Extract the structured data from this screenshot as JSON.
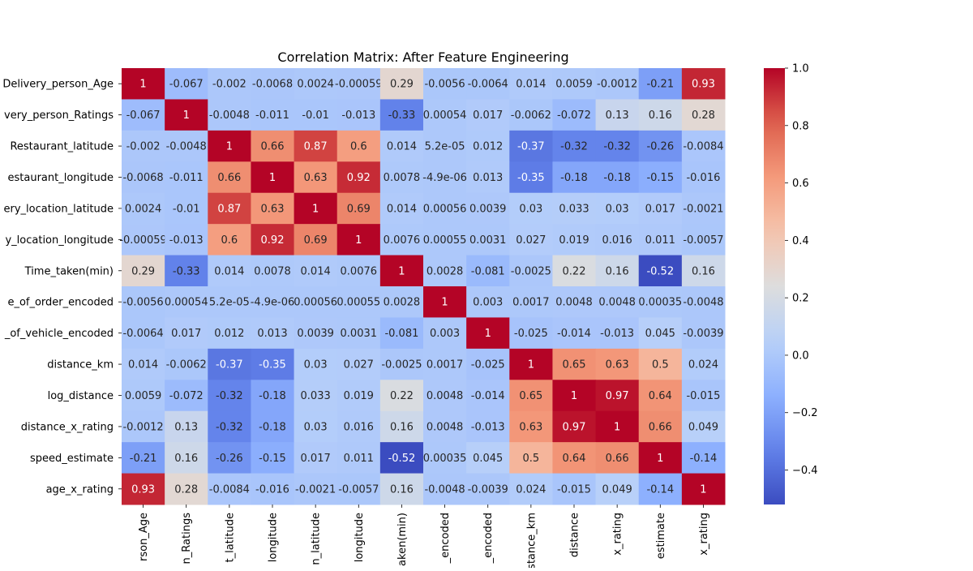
{
  "chart_data": {
    "type": "heatmap",
    "title": "Correlation Matrix: After Feature Engineering",
    "colormap": "coolwarm",
    "vmin": -0.52,
    "vmax": 1.0,
    "y_tick_labels": [
      "Delivery_person_Age",
      "very_person_Ratings",
      "Restaurant_latitude",
      "estaurant_longitude",
      "ery_location_latitude",
      "y_location_longitude",
      "Time_taken(min)",
      "e_of_order_encoded",
      "_of_vehicle_encoded",
      "distance_km",
      "log_distance",
      "distance_x_rating",
      "speed_estimate",
      "age_x_rating"
    ],
    "x_tick_labels": [
      "rson_Age",
      "n_Ratings",
      "t_latitude",
      "longitude",
      "n_latitude",
      "longitude",
      "aken(min)",
      "_encoded",
      "_encoded",
      "stance_km",
      "distance",
      "x_rating",
      "estimate",
      "x_rating"
    ],
    "values": [
      [
        1,
        -0.067,
        -0.002,
        -0.0068,
        0.0024,
        -0.00059,
        0.29,
        -0.0056,
        -0.0064,
        0.014,
        0.0059,
        -0.0012,
        -0.21,
        0.93
      ],
      [
        -0.067,
        1,
        -0.0048,
        -0.011,
        -0.01,
        -0.013,
        -0.33,
        0.00054,
        0.017,
        -0.0062,
        -0.072,
        0.13,
        0.16,
        0.28
      ],
      [
        -0.002,
        -0.0048,
        1,
        0.66,
        0.87,
        0.6,
        0.014,
        5.2e-05,
        0.012,
        -0.37,
        -0.32,
        -0.32,
        -0.26,
        -0.0084
      ],
      [
        -0.0068,
        -0.011,
        0.66,
        1,
        0.63,
        0.92,
        0.0078,
        -4.9e-06,
        0.013,
        -0.35,
        -0.18,
        -0.18,
        -0.15,
        -0.016
      ],
      [
        0.0024,
        -0.01,
        0.87,
        0.63,
        1,
        0.69,
        0.014,
        0.00056,
        0.0039,
        0.03,
        0.033,
        0.03,
        0.017,
        -0.0021
      ],
      [
        -0.00059,
        -0.013,
        0.6,
        0.92,
        0.69,
        1,
        0.0076,
        0.00055,
        0.0031,
        0.027,
        0.019,
        0.016,
        0.011,
        -0.0057
      ],
      [
        0.29,
        -0.33,
        0.014,
        0.0078,
        0.014,
        0.0076,
        1,
        0.0028,
        -0.081,
        -0.0025,
        0.22,
        0.16,
        -0.52,
        0.16
      ],
      [
        -0.0056,
        0.00054,
        5.2e-05,
        -4.9e-06,
        0.00056,
        0.00055,
        0.0028,
        1,
        0.003,
        0.0017,
        0.0048,
        0.0048,
        0.00035,
        -0.0048
      ],
      [
        -0.0064,
        0.017,
        0.012,
        0.013,
        0.0039,
        0.0031,
        -0.081,
        0.003,
        1,
        -0.025,
        -0.014,
        -0.013,
        0.045,
        -0.0039
      ],
      [
        0.014,
        -0.0062,
        -0.37,
        -0.35,
        0.03,
        0.027,
        -0.0025,
        0.0017,
        -0.025,
        1,
        0.65,
        0.63,
        0.5,
        0.024
      ],
      [
        0.0059,
        -0.072,
        -0.32,
        -0.18,
        0.033,
        0.019,
        0.22,
        0.0048,
        -0.014,
        0.65,
        1,
        0.97,
        0.64,
        -0.015
      ],
      [
        -0.0012,
        0.13,
        -0.32,
        -0.18,
        0.03,
        0.016,
        0.16,
        0.0048,
        -0.013,
        0.63,
        0.97,
        1,
        0.66,
        0.049
      ],
      [
        -0.21,
        0.16,
        -0.26,
        -0.15,
        0.017,
        0.011,
        -0.52,
        0.00035,
        0.045,
        0.5,
        0.64,
        0.66,
        1,
        -0.14
      ],
      [
        0.93,
        0.28,
        -0.0084,
        -0.016,
        -0.0021,
        -0.0057,
        0.16,
        -0.0048,
        -0.0039,
        0.024,
        -0.015,
        0.049,
        -0.14,
        1
      ]
    ],
    "cell_labels": [
      [
        "1",
        "-0.067",
        "-0.002",
        "-0.0068",
        "0.0024",
        "-0.00059",
        "0.29",
        "-0.0056",
        "-0.0064",
        "0.014",
        "0.0059",
        "-0.0012",
        "-0.21",
        "0.93"
      ],
      [
        "-0.067",
        "1",
        "-0.0048",
        "-0.011",
        "-0.01",
        "-0.013",
        "-0.33",
        "0.00054",
        "0.017",
        "-0.0062",
        "-0.072",
        "0.13",
        "0.16",
        "0.28"
      ],
      [
        "-0.002",
        "-0.0048",
        "1",
        "0.66",
        "0.87",
        "0.6",
        "0.014",
        "5.2e-05",
        "0.012",
        "-0.37",
        "-0.32",
        "-0.32",
        "-0.26",
        "-0.0084"
      ],
      [
        "-0.0068",
        "-0.011",
        "0.66",
        "1",
        "0.63",
        "0.92",
        "0.0078",
        "-4.9e-06",
        "0.013",
        "-0.35",
        "-0.18",
        "-0.18",
        "-0.15",
        "-0.016"
      ],
      [
        "0.0024",
        "-0.01",
        "0.87",
        "0.63",
        "1",
        "0.69",
        "0.014",
        "0.00056",
        "0.0039",
        "0.03",
        "0.033",
        "0.03",
        "0.017",
        "-0.0021"
      ],
      [
        "-0.00059",
        "-0.013",
        "0.6",
        "0.92",
        "0.69",
        "1",
        "0.0076",
        "0.00055",
        "0.0031",
        "0.027",
        "0.019",
        "0.016",
        "0.011",
        "-0.0057"
      ],
      [
        "0.29",
        "-0.33",
        "0.014",
        "0.0078",
        "0.014",
        "0.0076",
        "1",
        "0.0028",
        "-0.081",
        "-0.0025",
        "0.22",
        "0.16",
        "-0.52",
        "0.16"
      ],
      [
        "-0.0056",
        "0.00054",
        "5.2e-05",
        "-4.9e-06",
        "0.00056",
        "0.00055",
        "0.0028",
        "1",
        "0.003",
        "0.0017",
        "0.0048",
        "0.0048",
        "0.00035",
        "-0.0048"
      ],
      [
        "-0.0064",
        "0.017",
        "0.012",
        "0.013",
        "0.0039",
        "0.0031",
        "-0.081",
        "0.003",
        "1",
        "-0.025",
        "-0.014",
        "-0.013",
        "0.045",
        "-0.0039"
      ],
      [
        "0.014",
        "-0.0062",
        "-0.37",
        "-0.35",
        "0.03",
        "0.027",
        "-0.0025",
        "0.0017",
        "-0.025",
        "1",
        "0.65",
        "0.63",
        "0.5",
        "0.024"
      ],
      [
        "0.0059",
        "-0.072",
        "-0.32",
        "-0.18",
        "0.033",
        "0.019",
        "0.22",
        "0.0048",
        "-0.014",
        "0.65",
        "1",
        "0.97",
        "0.64",
        "-0.015"
      ],
      [
        "-0.0012",
        "0.13",
        "-0.32",
        "-0.18",
        "0.03",
        "0.016",
        "0.16",
        "0.0048",
        "-0.013",
        "0.63",
        "0.97",
        "1",
        "0.66",
        "0.049"
      ],
      [
        "-0.21",
        "0.16",
        "-0.26",
        "-0.15",
        "0.017",
        "0.011",
        "-0.52",
        "0.00035",
        "0.045",
        "0.5",
        "0.64",
        "0.66",
        "1",
        "-0.14"
      ],
      [
        "0.93",
        "0.28",
        "-0.0084",
        "-0.016",
        "-0.0021",
        "-0.0057",
        "0.16",
        "-0.0048",
        "-0.0039",
        "0.024",
        "-0.015",
        "0.049",
        "-0.14",
        "1"
      ]
    ],
    "colorbar": {
      "ticks": [
        1.0,
        0.8,
        0.6,
        0.4,
        0.2,
        0.0,
        -0.2,
        -0.4
      ],
      "tick_labels": [
        "1.0",
        "0.8",
        "0.6",
        "0.4",
        "0.2",
        "0.0",
        "−0.2",
        "−0.4"
      ],
      "range": [
        -0.52,
        1.0
      ]
    }
  }
}
